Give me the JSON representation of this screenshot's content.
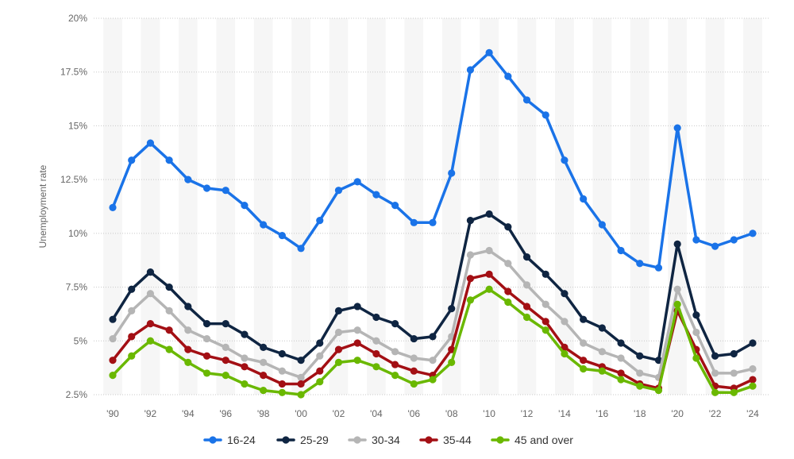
{
  "chart_data": {
    "type": "line",
    "ylabel": "Unemployment rate",
    "xlabel": "",
    "ylim": [
      2.5,
      20
    ],
    "yticks": [
      2.5,
      5,
      7.5,
      10,
      12.5,
      15,
      17.5,
      20
    ],
    "ytick_labels": [
      "2.5%",
      "5%",
      "7.5%",
      "10%",
      "12.5%",
      "15%",
      "17.5%",
      "20%"
    ],
    "x": [
      1990,
      1991,
      1992,
      1993,
      1994,
      1995,
      1996,
      1997,
      1998,
      1999,
      2000,
      2001,
      2002,
      2003,
      2004,
      2005,
      2006,
      2007,
      2008,
      2009,
      2010,
      2011,
      2012,
      2013,
      2014,
      2015,
      2016,
      2017,
      2018,
      2019,
      2020,
      2021,
      2022,
      2023,
      2024
    ],
    "xtick_labels": [
      "'90",
      "'92",
      "'94",
      "'96",
      "'98",
      "'00",
      "'02",
      "'04",
      "'06",
      "'08",
      "'10",
      "'12",
      "'14",
      "'16",
      "'18",
      "'20",
      "'22",
      "'24"
    ],
    "xtick_years": [
      1990,
      1992,
      1994,
      1996,
      1998,
      2000,
      2002,
      2004,
      2006,
      2008,
      2010,
      2012,
      2014,
      2016,
      2018,
      2020,
      2022,
      2024
    ],
    "grid": true,
    "legend_position": "bottom",
    "series": [
      {
        "name": "16-24",
        "color": "#1a73e8",
        "values": [
          11.2,
          13.4,
          14.2,
          13.4,
          12.5,
          12.1,
          12.0,
          11.3,
          10.4,
          9.9,
          9.3,
          10.6,
          12.0,
          12.4,
          11.8,
          11.3,
          10.5,
          10.5,
          12.8,
          17.6,
          18.4,
          17.3,
          16.2,
          15.5,
          13.4,
          11.6,
          10.4,
          9.2,
          8.6,
          8.4,
          14.9,
          9.7,
          9.4,
          9.7,
          10.0
        ]
      },
      {
        "name": "25-29",
        "color": "#0f2542",
        "values": [
          6.0,
          7.4,
          8.2,
          7.5,
          6.6,
          5.8,
          5.8,
          5.3,
          4.7,
          4.4,
          4.1,
          4.9,
          6.4,
          6.6,
          6.1,
          5.8,
          5.1,
          5.2,
          6.5,
          10.6,
          10.9,
          10.3,
          8.9,
          8.1,
          7.2,
          6.0,
          5.6,
          4.9,
          4.3,
          4.1,
          9.5,
          6.2,
          4.3,
          4.4,
          4.9
        ]
      },
      {
        "name": "30-34",
        "color": "#b5b5b5",
        "values": [
          5.1,
          6.4,
          7.2,
          6.4,
          5.5,
          5.1,
          4.7,
          4.2,
          4.0,
          3.6,
          3.3,
          4.3,
          5.4,
          5.5,
          5.0,
          4.5,
          4.2,
          4.1,
          5.2,
          9.0,
          9.2,
          8.6,
          7.6,
          6.7,
          5.9,
          4.9,
          4.5,
          4.2,
          3.5,
          3.3,
          7.4,
          5.4,
          3.5,
          3.5,
          3.7
        ]
      },
      {
        "name": "35-44",
        "color": "#a30f14",
        "values": [
          4.1,
          5.2,
          5.8,
          5.5,
          4.6,
          4.3,
          4.1,
          3.8,
          3.4,
          3.0,
          3.0,
          3.6,
          4.6,
          4.9,
          4.4,
          3.9,
          3.6,
          3.4,
          4.6,
          7.9,
          8.1,
          7.3,
          6.6,
          5.9,
          4.7,
          4.1,
          3.8,
          3.5,
          3.0,
          2.8,
          6.4,
          4.6,
          2.9,
          2.8,
          3.2
        ]
      },
      {
        "name": "45 and over",
        "color": "#6ab800",
        "values": [
          3.4,
          4.3,
          5.0,
          4.6,
          4.0,
          3.5,
          3.4,
          3.0,
          2.7,
          2.6,
          2.5,
          3.1,
          4.0,
          4.1,
          3.8,
          3.4,
          3.0,
          3.2,
          4.0,
          6.9,
          7.4,
          6.8,
          6.1,
          5.5,
          4.4,
          3.7,
          3.6,
          3.2,
          2.9,
          2.7,
          6.7,
          4.2,
          2.6,
          2.6,
          2.9
        ]
      }
    ]
  }
}
